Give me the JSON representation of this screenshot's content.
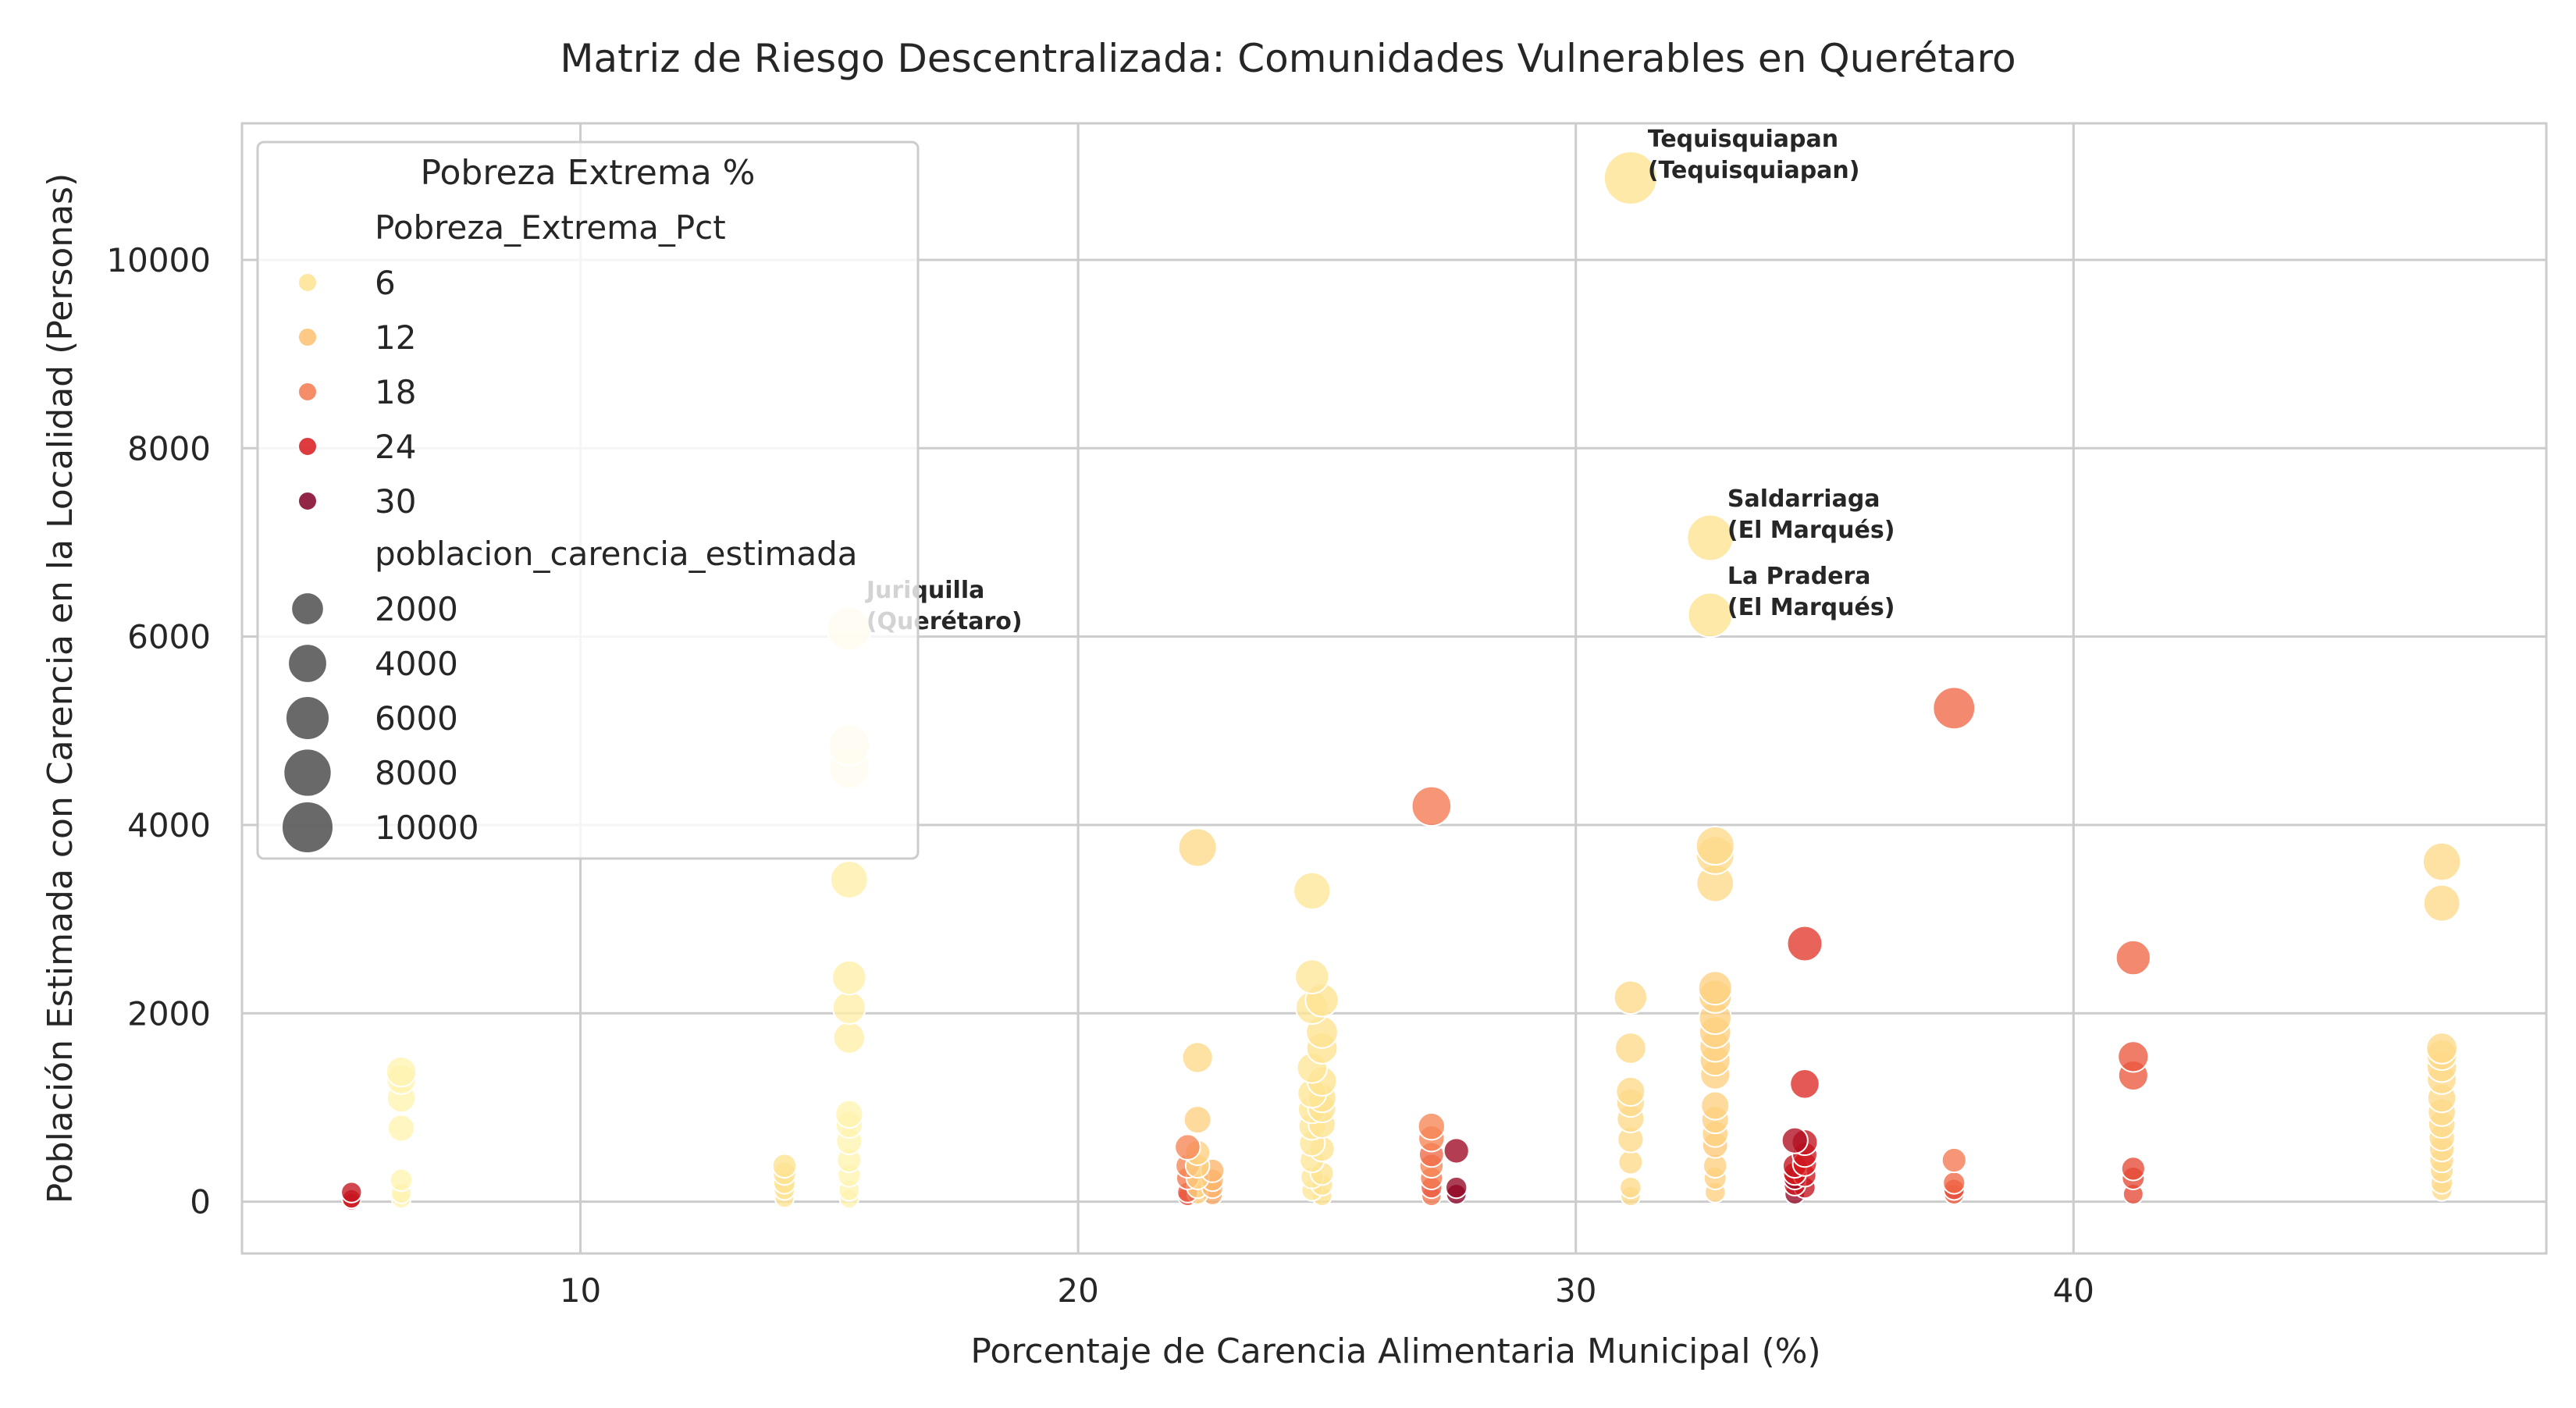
{
  "chart_data": {
    "type": "scatter",
    "title": "Matriz de Riesgo Descentralizada: Comunidades Vulnerables en Querétaro",
    "xlabel": "Porcentaje de Carencia Alimentaria Municipal (%)",
    "ylabel": "Población Estimada con Carencia en la Localidad (Personas)",
    "xlim": [
      3.2,
      49.5
    ],
    "ylim": [
      -550,
      11450
    ],
    "xticks": [
      10,
      20,
      30,
      40
    ],
    "yticks": [
      0,
      2000,
      4000,
      6000,
      8000,
      10000
    ],
    "grid": true,
    "hue_variable": "Pobreza_Extrema_Pct",
    "size_variable": "poblacion_carencia_estimada",
    "colors": {
      "6": "#fee391",
      "12": "#fdbf6f",
      "18": "#f4794f",
      "24": "#d7191c",
      "30": "#800026"
    },
    "legend": {
      "title": "Pobreza Extrema %",
      "placement": "top-left",
      "hue_title": "Pobreza_Extrema_Pct",
      "hue_entries": [
        {
          "label": "6",
          "value": 6
        },
        {
          "label": "12",
          "value": 12
        },
        {
          "label": "18",
          "value": 18
        },
        {
          "label": "24",
          "value": 24
        },
        {
          "label": "30",
          "value": 30
        }
      ],
      "size_title": "poblacion_carencia_estimada",
      "size_entries": [
        {
          "label": "2000",
          "value": 2000
        },
        {
          "label": "4000",
          "value": 4000
        },
        {
          "label": "6000",
          "value": 6000
        },
        {
          "label": "8000",
          "value": 8000
        },
        {
          "label": "10000",
          "value": 10000
        }
      ]
    },
    "annotations": [
      {
        "line1": "Tequisquiapan",
        "line2": "(Tequisquiapan)",
        "x": 31.1,
        "y": 10870
      },
      {
        "line1": "Saldarriaga",
        "line2": "(El Marqués)",
        "x": 32.7,
        "y": 7050
      },
      {
        "line1": "La Pradera",
        "line2": "(El Marqués)",
        "x": 32.7,
        "y": 6230
      },
      {
        "line1": "Juriquilla",
        "line2": "(Querétaro)",
        "x": 15.4,
        "y": 6080
      }
    ],
    "points": [
      {
        "x": 5.4,
        "y": 100,
        "p": 26
      },
      {
        "x": 5.4,
        "y": 30,
        "p": 25
      },
      {
        "x": 5.4,
        "y": 0,
        "p": 24
      },
      {
        "x": 6.4,
        "y": 1380,
        "p": 4
      },
      {
        "x": 6.4,
        "y": 1300,
        "p": 4
      },
      {
        "x": 6.4,
        "y": 1100,
        "p": 4
      },
      {
        "x": 6.4,
        "y": 780,
        "p": 4
      },
      {
        "x": 6.4,
        "y": 230,
        "p": 4
      },
      {
        "x": 6.4,
        "y": 90,
        "p": 4
      },
      {
        "x": 6.4,
        "y": 30,
        "p": 4
      },
      {
        "x": 14.1,
        "y": 380,
        "p": 8
      },
      {
        "x": 14.1,
        "y": 300,
        "p": 8
      },
      {
        "x": 14.1,
        "y": 200,
        "p": 8
      },
      {
        "x": 14.1,
        "y": 130,
        "p": 8
      },
      {
        "x": 14.1,
        "y": 40,
        "p": 8
      },
      {
        "x": 15.4,
        "y": 6080,
        "p": 4
      },
      {
        "x": 15.4,
        "y": 4850,
        "p": 4
      },
      {
        "x": 15.4,
        "y": 4600,
        "p": 4
      },
      {
        "x": 15.4,
        "y": 3420,
        "p": 5
      },
      {
        "x": 15.4,
        "y": 2380,
        "p": 5
      },
      {
        "x": 15.4,
        "y": 2060,
        "p": 5
      },
      {
        "x": 15.4,
        "y": 1740,
        "p": 5
      },
      {
        "x": 15.4,
        "y": 930,
        "p": 4
      },
      {
        "x": 15.4,
        "y": 820,
        "p": 4
      },
      {
        "x": 15.4,
        "y": 640,
        "p": 4
      },
      {
        "x": 15.4,
        "y": 440,
        "p": 4
      },
      {
        "x": 15.4,
        "y": 280,
        "p": 4
      },
      {
        "x": 15.4,
        "y": 120,
        "p": 4
      },
      {
        "x": 15.4,
        "y": 30,
        "p": 4
      },
      {
        "x": 22.2,
        "y": 580,
        "p": 17
      },
      {
        "x": 22.2,
        "y": 380,
        "p": 17
      },
      {
        "x": 22.2,
        "y": 250,
        "p": 18
      },
      {
        "x": 22.2,
        "y": 100,
        "p": 20
      },
      {
        "x": 22.2,
        "y": 60,
        "p": 21
      },
      {
        "x": 22.4,
        "y": 3760,
        "p": 9
      },
      {
        "x": 22.4,
        "y": 1530,
        "p": 9
      },
      {
        "x": 22.4,
        "y": 870,
        "p": 10
      },
      {
        "x": 22.4,
        "y": 520,
        "p": 10
      },
      {
        "x": 22.4,
        "y": 380,
        "p": 10
      },
      {
        "x": 22.4,
        "y": 250,
        "p": 10
      },
      {
        "x": 22.4,
        "y": 150,
        "p": 10
      },
      {
        "x": 22.4,
        "y": 80,
        "p": 10
      },
      {
        "x": 22.7,
        "y": 330,
        "p": 13
      },
      {
        "x": 22.7,
        "y": 230,
        "p": 13
      },
      {
        "x": 22.7,
        "y": 150,
        "p": 13
      },
      {
        "x": 22.7,
        "y": 70,
        "p": 14
      },
      {
        "x": 24.7,
        "y": 3300,
        "p": 7
      },
      {
        "x": 24.7,
        "y": 2390,
        "p": 7
      },
      {
        "x": 24.7,
        "y": 2060,
        "p": 7
      },
      {
        "x": 24.7,
        "y": 1420,
        "p": 7
      },
      {
        "x": 24.7,
        "y": 1150,
        "p": 7
      },
      {
        "x": 24.7,
        "y": 980,
        "p": 7
      },
      {
        "x": 24.7,
        "y": 800,
        "p": 7
      },
      {
        "x": 24.7,
        "y": 620,
        "p": 7
      },
      {
        "x": 24.7,
        "y": 440,
        "p": 7
      },
      {
        "x": 24.7,
        "y": 260,
        "p": 7
      },
      {
        "x": 24.7,
        "y": 120,
        "p": 7
      },
      {
        "x": 24.9,
        "y": 2140,
        "p": 8
      },
      {
        "x": 24.9,
        "y": 1800,
        "p": 8
      },
      {
        "x": 24.9,
        "y": 1630,
        "p": 8
      },
      {
        "x": 24.9,
        "y": 1280,
        "p": 8
      },
      {
        "x": 24.9,
        "y": 1100,
        "p": 8
      },
      {
        "x": 24.9,
        "y": 990,
        "p": 8
      },
      {
        "x": 24.9,
        "y": 820,
        "p": 8
      },
      {
        "x": 24.9,
        "y": 560,
        "p": 8
      },
      {
        "x": 24.9,
        "y": 300,
        "p": 8
      },
      {
        "x": 24.9,
        "y": 180,
        "p": 8
      },
      {
        "x": 24.9,
        "y": 60,
        "p": 8
      },
      {
        "x": 27.1,
        "y": 4200,
        "p": 18
      },
      {
        "x": 27.1,
        "y": 800,
        "p": 17
      },
      {
        "x": 27.1,
        "y": 670,
        "p": 17
      },
      {
        "x": 27.1,
        "y": 500,
        "p": 19
      },
      {
        "x": 27.1,
        "y": 380,
        "p": 17
      },
      {
        "x": 27.1,
        "y": 250,
        "p": 18
      },
      {
        "x": 27.1,
        "y": 150,
        "p": 20
      },
      {
        "x": 27.1,
        "y": 60,
        "p": 18
      },
      {
        "x": 27.6,
        "y": 540,
        "p": 30
      },
      {
        "x": 27.6,
        "y": 150,
        "p": 31
      },
      {
        "x": 27.6,
        "y": 80,
        "p": 32
      },
      {
        "x": 31.1,
        "y": 10870,
        "p": 8
      },
      {
        "x": 31.1,
        "y": 2170,
        "p": 9
      },
      {
        "x": 31.1,
        "y": 1630,
        "p": 9
      },
      {
        "x": 31.1,
        "y": 1170,
        "p": 9
      },
      {
        "x": 31.1,
        "y": 1050,
        "p": 9
      },
      {
        "x": 31.1,
        "y": 880,
        "p": 9
      },
      {
        "x": 31.1,
        "y": 660,
        "p": 9
      },
      {
        "x": 31.1,
        "y": 420,
        "p": 9
      },
      {
        "x": 31.1,
        "y": 150,
        "p": 9
      },
      {
        "x": 31.1,
        "y": 60,
        "p": 9
      },
      {
        "x": 32.7,
        "y": 7050,
        "p": 8
      },
      {
        "x": 32.7,
        "y": 6230,
        "p": 8
      },
      {
        "x": 32.8,
        "y": 3780,
        "p": 9
      },
      {
        "x": 32.8,
        "y": 3680,
        "p": 9
      },
      {
        "x": 32.8,
        "y": 3380,
        "p": 9
      },
      {
        "x": 32.8,
        "y": 2270,
        "p": 10
      },
      {
        "x": 32.8,
        "y": 2180,
        "p": 10
      },
      {
        "x": 32.8,
        "y": 1950,
        "p": 10
      },
      {
        "x": 32.8,
        "y": 1800,
        "p": 10
      },
      {
        "x": 32.8,
        "y": 1650,
        "p": 10
      },
      {
        "x": 32.8,
        "y": 1500,
        "p": 10
      },
      {
        "x": 32.8,
        "y": 1350,
        "p": 10
      },
      {
        "x": 32.8,
        "y": 1020,
        "p": 10
      },
      {
        "x": 32.8,
        "y": 870,
        "p": 10
      },
      {
        "x": 32.8,
        "y": 720,
        "p": 10
      },
      {
        "x": 32.8,
        "y": 600,
        "p": 11
      },
      {
        "x": 32.8,
        "y": 380,
        "p": 10
      },
      {
        "x": 32.8,
        "y": 250,
        "p": 10
      },
      {
        "x": 32.8,
        "y": 100,
        "p": 10
      },
      {
        "x": 34.4,
        "y": 650,
        "p": 28
      },
      {
        "x": 34.4,
        "y": 380,
        "p": 26
      },
      {
        "x": 34.4,
        "y": 300,
        "p": 24
      },
      {
        "x": 34.4,
        "y": 250,
        "p": 30
      },
      {
        "x": 34.4,
        "y": 180,
        "p": 25
      },
      {
        "x": 34.4,
        "y": 80,
        "p": 31
      },
      {
        "x": 34.6,
        "y": 2740,
        "p": 22
      },
      {
        "x": 34.6,
        "y": 1250,
        "p": 23
      },
      {
        "x": 34.6,
        "y": 630,
        "p": 26
      },
      {
        "x": 34.6,
        "y": 500,
        "p": 25
      },
      {
        "x": 34.6,
        "y": 400,
        "p": 24
      },
      {
        "x": 34.6,
        "y": 280,
        "p": 25
      },
      {
        "x": 34.6,
        "y": 150,
        "p": 26
      },
      {
        "x": 37.6,
        "y": 5240,
        "p": 19
      },
      {
        "x": 37.6,
        "y": 440,
        "p": 18
      },
      {
        "x": 37.6,
        "y": 200,
        "p": 19
      },
      {
        "x": 37.6,
        "y": 130,
        "p": 21
      },
      {
        "x": 37.6,
        "y": 80,
        "p": 20
      },
      {
        "x": 41.2,
        "y": 2590,
        "p": 19
      },
      {
        "x": 41.2,
        "y": 1540,
        "p": 20
      },
      {
        "x": 41.2,
        "y": 1340,
        "p": 20
      },
      {
        "x": 41.2,
        "y": 350,
        "p": 21
      },
      {
        "x": 41.2,
        "y": 250,
        "p": 21
      },
      {
        "x": 41.2,
        "y": 80,
        "p": 21
      },
      {
        "x": 47.4,
        "y": 3610,
        "p": 9
      },
      {
        "x": 47.4,
        "y": 3170,
        "p": 9
      },
      {
        "x": 47.4,
        "y": 1630,
        "p": 9
      },
      {
        "x": 47.4,
        "y": 1560,
        "p": 9
      },
      {
        "x": 47.4,
        "y": 1430,
        "p": 9
      },
      {
        "x": 47.4,
        "y": 1300,
        "p": 9
      },
      {
        "x": 47.4,
        "y": 1100,
        "p": 9
      },
      {
        "x": 47.4,
        "y": 950,
        "p": 9
      },
      {
        "x": 47.4,
        "y": 820,
        "p": 9
      },
      {
        "x": 47.4,
        "y": 680,
        "p": 9
      },
      {
        "x": 47.4,
        "y": 560,
        "p": 9
      },
      {
        "x": 47.4,
        "y": 440,
        "p": 9
      },
      {
        "x": 47.4,
        "y": 330,
        "p": 9
      },
      {
        "x": 47.4,
        "y": 200,
        "p": 9
      },
      {
        "x": 47.4,
        "y": 120,
        "p": 9
      }
    ]
  }
}
